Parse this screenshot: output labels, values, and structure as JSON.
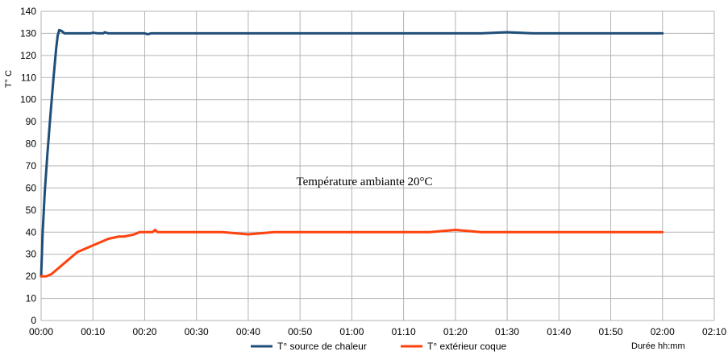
{
  "chart_data": {
    "type": "line",
    "title": "",
    "xlabel": "Durée hh:mm",
    "ylabel": "T° C",
    "xlim": [
      0,
      130
    ],
    "ylim": [
      0,
      140
    ],
    "grid": true,
    "legend_position": "bottom",
    "x_tick_labels": [
      "00:00",
      "00:10",
      "00:20",
      "00:30",
      "00:40",
      "00:50",
      "01:00",
      "01:10",
      "01:20",
      "01:30",
      "01:40",
      "01:50",
      "02:00",
      "02:10"
    ],
    "y_tick_labels": [
      "0",
      "10",
      "20",
      "30",
      "40",
      "50",
      "60",
      "70",
      "80",
      "90",
      "100",
      "110",
      "120",
      "130",
      "140"
    ],
    "annotation": "Température ambiante 20°C",
    "series": [
      {
        "name": "T° source de chaleur",
        "color": "#1f4e79",
        "x": [
          0,
          0.3,
          0.7,
          1.2,
          1.8,
          2.4,
          2.9,
          3.2,
          3.5,
          4.0,
          4.5,
          5.0,
          7,
          9.5,
          10,
          11,
          12,
          12.3,
          13,
          20,
          20.6,
          21.2,
          30,
          50,
          70,
          85,
          90,
          95,
          100,
          120
        ],
        "values": [
          20,
          40,
          58,
          75,
          93,
          110,
          123,
          129,
          131.5,
          131,
          130,
          130,
          130,
          130,
          130.3,
          130,
          130,
          130.5,
          130,
          130,
          129.6,
          130,
          130,
          130,
          130,
          130,
          130.5,
          130,
          130,
          130
        ]
      },
      {
        "name": "T° extérieur coque",
        "color": "#ff420e",
        "x": [
          0,
          1,
          2,
          3,
          4,
          5,
          6,
          7,
          8,
          9,
          10,
          11,
          12,
          13,
          14,
          15,
          16,
          17,
          18,
          19,
          20,
          21.5,
          22,
          22.5,
          30,
          35,
          40,
          45,
          50,
          60,
          75,
          80,
          85,
          90,
          100,
          120
        ],
        "values": [
          20,
          20,
          21,
          23,
          25,
          27,
          29,
          31,
          32,
          33,
          34,
          35,
          36,
          37,
          37.5,
          38,
          38,
          38.5,
          39,
          40,
          40,
          40,
          41,
          40,
          40,
          40,
          39,
          40,
          40,
          40,
          40,
          41,
          40,
          40,
          40,
          40
        ]
      }
    ]
  }
}
